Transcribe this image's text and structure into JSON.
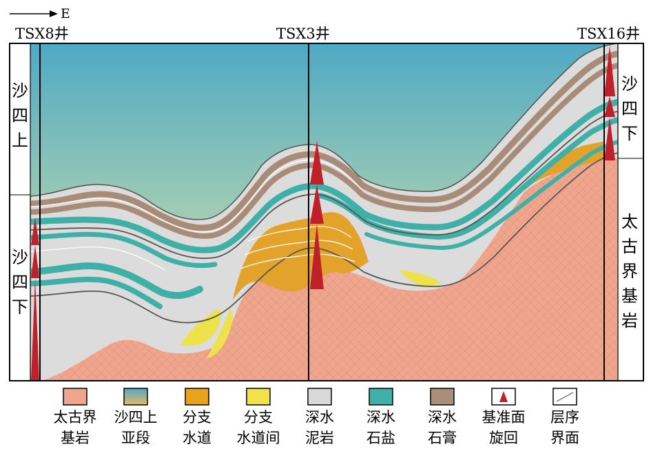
{
  "direction": {
    "label": "E"
  },
  "wells": [
    {
      "id": "w1",
      "name": "TSX8井"
    },
    {
      "id": "w2",
      "name": "TSX3井"
    },
    {
      "id": "w3",
      "name": "TSX16井"
    }
  ],
  "side_labels": {
    "left_upper": [
      "沙",
      "四",
      "上"
    ],
    "left_lower": [
      "沙",
      "四",
      "下"
    ],
    "right_upper": [
      "沙",
      "四",
      "下"
    ],
    "right_lower": [
      "太",
      "古",
      "界",
      "基",
      "岩"
    ]
  },
  "legend": [
    {
      "key": "archean_bedrock",
      "line1": "太古界",
      "line2": "基岩",
      "color": "#f0a58d"
    },
    {
      "key": "upper_es4",
      "line1": "沙四上",
      "line2": "亚段",
      "color": "#55aac0"
    },
    {
      "key": "distributary_channel",
      "line1": "分支",
      "line2": "水道",
      "color": "#e8a31e"
    },
    {
      "key": "interchannel",
      "line1": "分支",
      "line2": "水道间",
      "color": "#f0e24a"
    },
    {
      "key": "deepwater_mudstone",
      "line1": "深水",
      "line2": "泥岩",
      "color": "#d9d9d9"
    },
    {
      "key": "deepwater_salt",
      "line1": "深水",
      "line2": "石盐",
      "color": "#3fb0a8"
    },
    {
      "key": "deepwater_gypsum",
      "line1": "深水",
      "line2": "石膏",
      "color": "#a98e7a"
    },
    {
      "key": "base_level_cycle",
      "line1": "基准面",
      "line2": "旋回",
      "color": "#c0202a"
    },
    {
      "key": "sequence_boundary",
      "line1": "层序",
      "line2": "界面",
      "color": "#606060"
    }
  ]
}
